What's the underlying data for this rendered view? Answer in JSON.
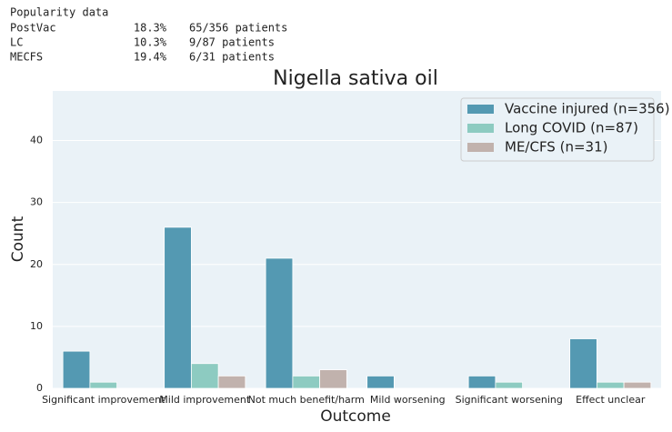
{
  "popularity": {
    "title": "Popularity data",
    "rows": [
      [
        "PostVac",
        "18.3%",
        "65/356 patients"
      ],
      [
        "LC",
        "10.3%",
        "9/87 patients"
      ],
      [
        "MECFS",
        "19.4%",
        "6/31 patients"
      ]
    ]
  },
  "chart_data": {
    "type": "bar",
    "title": "Nigella sativa oil",
    "x_label": "Outcome",
    "y_label": "Count",
    "categories": [
      "Significant improvement",
      "Mild improvement",
      "Not much benefit/harm",
      "Mild worsening",
      "Significant worsening",
      "Effect unclear"
    ],
    "series": [
      {
        "name": "Vaccine injured (n=356)",
        "color": "#5499b2",
        "values": [
          6,
          26,
          21,
          2,
          2,
          8
        ]
      },
      {
        "name": "Long COVID (n=87)",
        "color": "#8dcbc1",
        "values": [
          1,
          4,
          2,
          0,
          1,
          1
        ]
      },
      {
        "name": "ME/CFS (n=31)",
        "color": "#c1b2ad",
        "values": [
          0,
          2,
          3,
          0,
          0,
          1
        ]
      }
    ],
    "ylim": [
      0,
      48
    ],
    "yticks": [
      0,
      10,
      20,
      30,
      40
    ],
    "grid": true,
    "legend": "upper right"
  }
}
